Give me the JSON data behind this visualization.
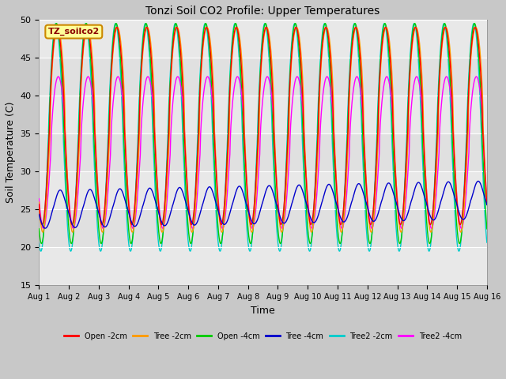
{
  "title": "Tonzi Soil CO2 Profile: Upper Temperatures",
  "xlabel": "Time",
  "ylabel": "Soil Temperature (C)",
  "ylim": [
    15,
    50
  ],
  "xlim": [
    0,
    15
  ],
  "xtick_labels": [
    "Aug 1",
    "Aug 2",
    "Aug 3",
    "Aug 4",
    "Aug 5",
    "Aug 6",
    "Aug 7",
    "Aug 8",
    "Aug 9",
    "Aug 10",
    "Aug 11",
    "Aug 12",
    "Aug 13",
    "Aug 14",
    "Aug 15",
    "Aug 16"
  ],
  "ytick_vals": [
    15,
    20,
    25,
    30,
    35,
    40,
    45,
    50
  ],
  "legend_entries": [
    "Open -2cm",
    "Tree -2cm",
    "Open -4cm",
    "Tree -4cm",
    "Tree2 -2cm",
    "Tree2 -4cm"
  ],
  "line_colors": [
    "#ff0000",
    "#ff9900",
    "#00cc00",
    "#0000cc",
    "#00cccc",
    "#ff00ff"
  ],
  "label_box_text": "TZ_soilco2",
  "label_box_color": "#ffff99",
  "label_box_edge": "#cc8800",
  "fig_bg_color": "#c8c8c8",
  "plot_bg_color": "#e0e0e0",
  "alt_band_color": "#d0d0d0",
  "linewidth": 1.0
}
